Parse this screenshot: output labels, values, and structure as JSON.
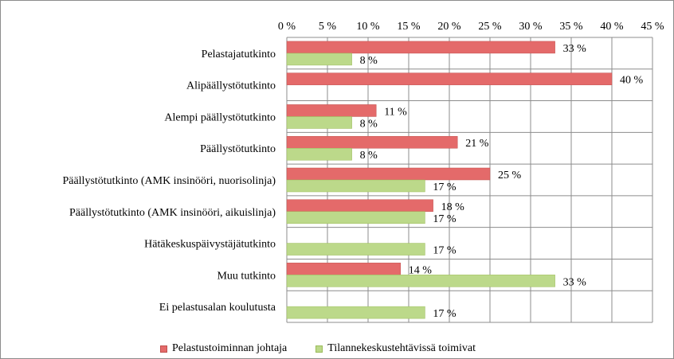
{
  "chart_data": {
    "type": "bar",
    "orientation": "horizontal",
    "categories": [
      "Pelastajatutkinto",
      "Alipäällystötutkinto",
      "Alempi päällystötutkinto",
      "Päällystötutkinto",
      "Päällystötutkinto (AMK insinööri, nuorisolinja)",
      "Päällystötutkinto (AMK insinööri, aikuislinja)",
      "Hätäkeskuspäivystäjätutkinto",
      "Muu tutkinto",
      "Ei pelastusalan koulutusta"
    ],
    "series": [
      {
        "name": "Pelastustoiminnan johtaja",
        "color": "#e46a6a",
        "values": [
          33,
          40,
          11,
          21,
          25,
          18,
          null,
          14,
          null
        ],
        "labels": [
          "33 %",
          "40 %",
          "11 %",
          "21 %",
          "25 %",
          "18 %",
          "",
          "14 %",
          ""
        ]
      },
      {
        "name": "Tilannekeskustehtävissä toimivat",
        "color": "#bcd98a",
        "values": [
          8,
          null,
          8,
          8,
          17,
          17,
          17,
          33,
          17
        ],
        "labels": [
          "8 %",
          "",
          "8 %",
          "8 %",
          "17 %",
          "17 %",
          "17 %",
          "33 %",
          "17 %"
        ]
      }
    ],
    "xlim": [
      0,
      45
    ],
    "xticks": [
      0,
      5,
      10,
      15,
      20,
      25,
      30,
      35,
      40,
      45
    ],
    "xtick_labels": [
      "0 %",
      "5 %",
      "10 %",
      "15 %",
      "20 %",
      "25 %",
      "30 %",
      "35 %",
      "40 %",
      "45 %"
    ],
    "x_axis_position": "top",
    "grid": true,
    "legend_position": "bottom"
  }
}
